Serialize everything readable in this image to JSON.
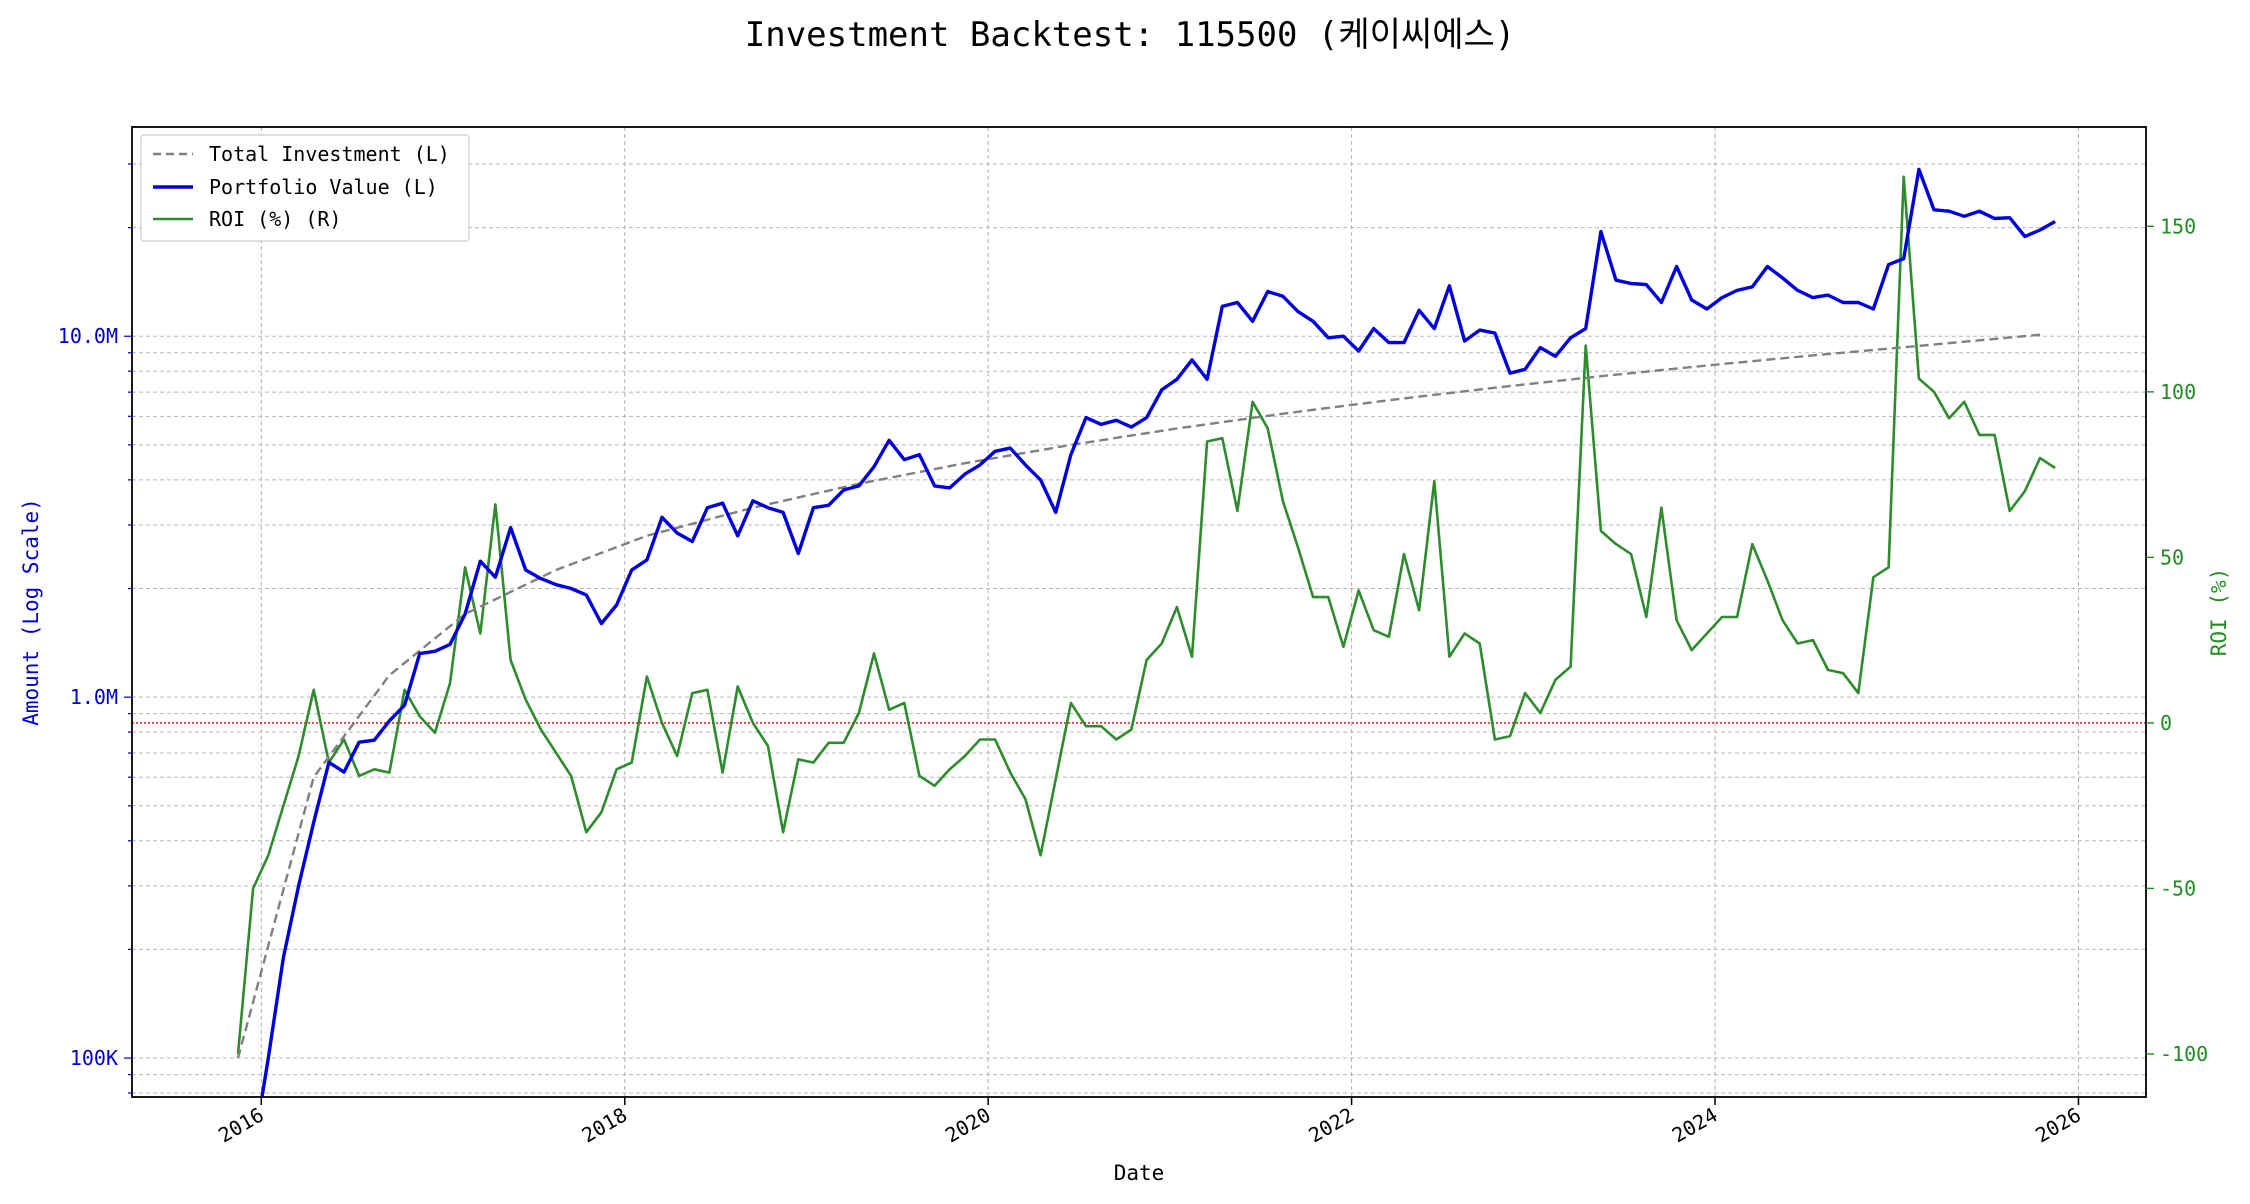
{
  "chart_data": {
    "type": "line",
    "title": "Investment Backtest: 115500 (케이씨에스)",
    "xlabel": "Date",
    "ylabel_left": "Amount (Log Scale)",
    "ylabel_right": "ROI (%)",
    "left_axis_scale": "log",
    "grid": true,
    "legend_position": "top-left",
    "x_ticks": [
      "2016",
      "2018",
      "2020",
      "2022",
      "2024",
      "2026"
    ],
    "y_left_ticks": [
      {
        "value": 100000,
        "label": "100K"
      },
      {
        "value": 1000000,
        "label": "1.0M"
      },
      {
        "value": 10000000,
        "label": "10.0M"
      }
    ],
    "y_right_ticks": [
      -100,
      -50,
      0,
      50,
      100,
      150
    ],
    "x_range": [
      "2015-04-15",
      "2026-05-15"
    ],
    "y_left_range": [
      78000,
      38000000
    ],
    "y_right_range": [
      -113,
      180
    ],
    "reference_line": {
      "axis": "right",
      "value": 0,
      "color": "#dd0000",
      "style": "dotted"
    },
    "colors": {
      "investment": "#808080",
      "portfolio": "#0000dd",
      "roi": "#2e8b2e",
      "left_axis": "#0000cc",
      "right_axis": "#228b22"
    },
    "series": [
      {
        "name": "Total Investment (L)",
        "axis": "left",
        "style": "dashed",
        "x": [
          "2015-11",
          "2016-04",
          "2016-09",
          "2017-02",
          "2017-08",
          "2018-02",
          "2018-09",
          "2019-04",
          "2019-11",
          "2020-06",
          "2021-01",
          "2021-08",
          "2022-03",
          "2022-10",
          "2023-05",
          "2023-12",
          "2024-07",
          "2025-02",
          "2025-10"
        ],
        "values": [
          100000,
          600000,
          1150000,
          1700000,
          2250000,
          2800000,
          3350000,
          3900000,
          4450000,
          5000000,
          5550000,
          6100000,
          6650000,
          7200000,
          7750000,
          8300000,
          8850000,
          9400000,
          10100000
        ]
      },
      {
        "name": "Portfolio Value (L)",
        "axis": "left",
        "style": "solid",
        "x": [
          "2015-12",
          "2016-01",
          "2016-02",
          "2016-03",
          "2016-04",
          "2016-05",
          "2016-06",
          "2016-07",
          "2016-08",
          "2016-09",
          "2016-10",
          "2016-11",
          "2016-12",
          "2017-01",
          "2017-02",
          "2017-03",
          "2017-04",
          "2017-05",
          "2017-06",
          "2017-07",
          "2017-08",
          "2017-09",
          "2017-10",
          "2017-11",
          "2017-12",
          "2018-01",
          "2018-02",
          "2018-03",
          "2018-04",
          "2018-05",
          "2018-06",
          "2018-07",
          "2018-08",
          "2018-09",
          "2018-10",
          "2018-11",
          "2018-12",
          "2019-01",
          "2019-02",
          "2019-03",
          "2019-04",
          "2019-05",
          "2019-06",
          "2019-07",
          "2019-08",
          "2019-09",
          "2019-10",
          "2019-11",
          "2019-12",
          "2020-01",
          "2020-02",
          "2020-03",
          "2020-04",
          "2020-05",
          "2020-06",
          "2020-07",
          "2020-08",
          "2020-09",
          "2020-10",
          "2020-11",
          "2020-12",
          "2021-01",
          "2021-02",
          "2021-03",
          "2021-04",
          "2021-05",
          "2021-06",
          "2021-07",
          "2021-08",
          "2021-09",
          "2021-10",
          "2021-11",
          "2021-12",
          "2022-01",
          "2022-02",
          "2022-03",
          "2022-04",
          "2022-05",
          "2022-06",
          "2022-07",
          "2022-08",
          "2022-09",
          "2022-10",
          "2022-11",
          "2022-12",
          "2023-01",
          "2023-02",
          "2023-03",
          "2023-04",
          "2023-05",
          "2023-06",
          "2023-07",
          "2023-08",
          "2023-09",
          "2023-10",
          "2023-11",
          "2023-12",
          "2024-01",
          "2024-02",
          "2024-03",
          "2024-04",
          "2024-05",
          "2024-06",
          "2024-07",
          "2024-08",
          "2024-09",
          "2024-10",
          "2024-11",
          "2024-12",
          "2025-01",
          "2025-02",
          "2025-03",
          "2025-04",
          "2025-05",
          "2025-06",
          "2025-07",
          "2025-08",
          "2025-09",
          "2025-10",
          "2025-11"
        ],
        "values": [
          55000,
          100000,
          190000,
          300000,
          450000,
          660000,
          620000,
          750000,
          760000,
          860000,
          950000,
          1320000,
          1340000,
          1400000,
          1700000,
          2380000,
          2150000,
          2950000,
          2250000,
          2130000,
          2050000,
          2000000,
          1920000,
          1600000,
          1800000,
          2250000,
          2400000,
          3150000,
          2850000,
          2700000,
          3350000,
          3450000,
          2800000,
          3500000,
          3350000,
          3250000,
          2500000,
          3350000,
          3400000,
          3750000,
          3850000,
          4350000,
          5150000,
          4550000,
          4700000,
          3850000,
          3800000,
          4150000,
          4400000,
          4800000,
          4900000,
          4400000,
          4000000,
          3250000,
          4700000,
          5950000,
          5700000,
          5850000,
          5600000,
          5950000,
          7100000,
          7600000,
          8600000,
          7600000,
          12100000,
          12400000,
          11000000,
          13300000,
          12900000,
          11700000,
          11000000,
          9900000,
          10000000,
          9100000,
          10500000,
          9600000,
          9600000,
          11800000,
          10500000,
          13800000,
          9700000,
          10400000,
          10200000,
          7900000,
          8100000,
          9300000,
          8800000,
          9900000,
          10500000,
          19500000,
          14300000,
          14000000,
          13900000,
          12400000,
          15600000,
          12600000,
          11900000,
          12800000,
          13400000,
          13700000,
          15600000,
          14500000,
          13400000,
          12800000,
          13000000,
          12400000,
          12400000,
          11900000,
          15800000,
          16400000,
          29000000,
          22400000,
          22200000,
          21500000,
          22200000,
          21200000,
          21300000,
          18900000,
          19700000,
          20800000
        ]
      },
      {
        "name": "ROI (%) (R)",
        "axis": "right",
        "style": "solid",
        "x": [
          "2015-11",
          "2015-12",
          "2016-01",
          "2016-02",
          "2016-03",
          "2016-04",
          "2016-05",
          "2016-06",
          "2016-07",
          "2016-08",
          "2016-09",
          "2016-10",
          "2016-11",
          "2016-12",
          "2017-01",
          "2017-02",
          "2017-03",
          "2017-04",
          "2017-05",
          "2017-06",
          "2017-07",
          "2017-08",
          "2017-09",
          "2017-10",
          "2017-11",
          "2017-12",
          "2018-01",
          "2018-02",
          "2018-03",
          "2018-04",
          "2018-05",
          "2018-06",
          "2018-07",
          "2018-08",
          "2018-09",
          "2018-10",
          "2018-11",
          "2018-12",
          "2019-01",
          "2019-02",
          "2019-03",
          "2019-04",
          "2019-05",
          "2019-06",
          "2019-07",
          "2019-08",
          "2019-09",
          "2019-10",
          "2019-11",
          "2019-12",
          "2020-01",
          "2020-02",
          "2020-03",
          "2020-04",
          "2020-05",
          "2020-06",
          "2020-07",
          "2020-08",
          "2020-09",
          "2020-10",
          "2020-11",
          "2020-12",
          "2021-01",
          "2021-02",
          "2021-03",
          "2021-04",
          "2021-05",
          "2021-06",
          "2021-07",
          "2021-08",
          "2021-09",
          "2021-10",
          "2021-11",
          "2021-12",
          "2022-01",
          "2022-02",
          "2022-03",
          "2022-04",
          "2022-05",
          "2022-06",
          "2022-07",
          "2022-08",
          "2022-09",
          "2022-10",
          "2022-11",
          "2022-12",
          "2023-01",
          "2023-02",
          "2023-03",
          "2023-04",
          "2023-05",
          "2023-06",
          "2023-07",
          "2023-08",
          "2023-09",
          "2023-10",
          "2023-11",
          "2023-12",
          "2024-01",
          "2024-02",
          "2024-03",
          "2024-04",
          "2024-05",
          "2024-06",
          "2024-07",
          "2024-08",
          "2024-09",
          "2024-10",
          "2024-11",
          "2024-12",
          "2025-01",
          "2025-02",
          "2025-03",
          "2025-04",
          "2025-05",
          "2025-06",
          "2025-07",
          "2025-08",
          "2025-09",
          "2025-10",
          "2025-11"
        ],
        "values": [
          -100,
          -50,
          -40,
          -25,
          -10,
          10,
          -12,
          -5,
          -16,
          -14,
          -15,
          10,
          2,
          -3,
          12,
          47,
          27,
          66,
          19,
          7,
          -2,
          -9,
          -16,
          -33,
          -27,
          -14,
          -12,
          14,
          0,
          -10,
          9,
          10,
          -15,
          11,
          0,
          -7,
          -33,
          -11,
          -12,
          -6,
          -6,
          3,
          21,
          4,
          6,
          -16,
          -19,
          -14,
          -10,
          -5,
          -5,
          -15,
          -23,
          -40,
          -17,
          6,
          -1,
          -1,
          -5,
          -2,
          19,
          24,
          35,
          20,
          85,
          86,
          64,
          97,
          89,
          67,
          53,
          38,
          38,
          23,
          40,
          28,
          26,
          51,
          34,
          73,
          20,
          27,
          24,
          -5,
          -4,
          9,
          3,
          13,
          17,
          114,
          58,
          54,
          51,
          32,
          65,
          31,
          22,
          27,
          32,
          32,
          54,
          43,
          31,
          24,
          25,
          16,
          15,
          9,
          44,
          47,
          165,
          104,
          100,
          92,
          97,
          87,
          87,
          64,
          70,
          80,
          77
        ]
      }
    ]
  }
}
